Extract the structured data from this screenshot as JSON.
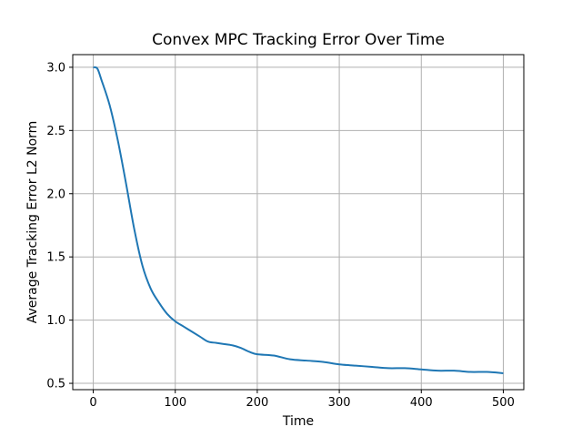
{
  "chart_data": {
    "type": "line",
    "title": "Convex MPC Tracking Error Over Time",
    "xlabel": "Time",
    "ylabel": "Average Tracking Error L2 Norm",
    "xlim": [
      -25,
      525
    ],
    "ylim": [
      0.45,
      3.1
    ],
    "xticks": [
      0,
      100,
      200,
      300,
      400,
      500
    ],
    "xtick_labels": [
      "0",
      "100",
      "200",
      "300",
      "400",
      "500"
    ],
    "yticks": [
      0.5,
      1.0,
      1.5,
      2.0,
      2.5,
      3.0
    ],
    "ytick_labels": [
      "0.5",
      "1.0",
      "1.5",
      "2.0",
      "2.5",
      "3.0"
    ],
    "grid": true,
    "line_color": "#1f77b4",
    "series": [
      {
        "x": [
          0,
          5,
          10,
          20,
          30,
          40,
          50,
          60,
          70,
          80,
          90,
          100,
          110,
          120,
          130,
          140,
          150,
          160,
          170,
          180,
          190,
          200,
          220,
          240,
          260,
          280,
          300,
          320,
          340,
          360,
          380,
          400,
          420,
          440,
          460,
          480,
          500
        ],
        "values": [
          3.0,
          2.99,
          2.9,
          2.7,
          2.42,
          2.08,
          1.72,
          1.43,
          1.25,
          1.14,
          1.05,
          0.99,
          0.95,
          0.91,
          0.87,
          0.83,
          0.82,
          0.81,
          0.8,
          0.78,
          0.75,
          0.73,
          0.72,
          0.69,
          0.68,
          0.67,
          0.65,
          0.64,
          0.63,
          0.62,
          0.62,
          0.61,
          0.6,
          0.6,
          0.59,
          0.59,
          0.58
        ]
      }
    ]
  }
}
